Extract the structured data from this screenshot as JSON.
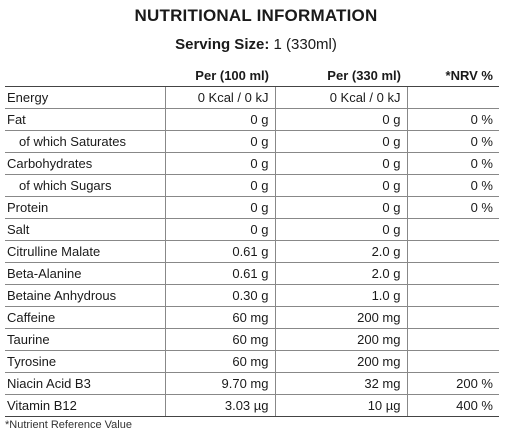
{
  "title": "NUTRITIONAL INFORMATION",
  "serving": {
    "label": "Serving Size:",
    "value": "1 (330ml)"
  },
  "table": {
    "headers": [
      "",
      "Per (100 ml)",
      "Per (330 ml)",
      "*NRV %"
    ],
    "rows": [
      {
        "name": "Energy",
        "indent": false,
        "per100": "0 Kcal / 0 kJ",
        "per330": "0 Kcal / 0 kJ",
        "nrv": ""
      },
      {
        "name": "Fat",
        "indent": false,
        "per100": "0 g",
        "per330": "0 g",
        "nrv": "0 %"
      },
      {
        "name": "of which Saturates",
        "indent": true,
        "per100": "0 g",
        "per330": "0 g",
        "nrv": "0 %"
      },
      {
        "name": "Carbohydrates",
        "indent": false,
        "per100": "0 g",
        "per330": "0 g",
        "nrv": "0 %"
      },
      {
        "name": "of which Sugars",
        "indent": true,
        "per100": "0 g",
        "per330": "0 g",
        "nrv": "0 %"
      },
      {
        "name": "Protein",
        "indent": false,
        "per100": "0 g",
        "per330": "0 g",
        "nrv": "0 %"
      },
      {
        "name": "Salt",
        "indent": false,
        "per100": "0 g",
        "per330": "0 g",
        "nrv": ""
      },
      {
        "name": "Citrulline Malate",
        "indent": false,
        "per100": "0.61 g",
        "per330": "2.0 g",
        "nrv": ""
      },
      {
        "name": "Beta-Alanine",
        "indent": false,
        "per100": "0.61 g",
        "per330": "2.0 g",
        "nrv": ""
      },
      {
        "name": "Betaine Anhydrous",
        "indent": false,
        "per100": "0.30 g",
        "per330": "1.0 g",
        "nrv": ""
      },
      {
        "name": "Caffeine",
        "indent": false,
        "per100": "60 mg",
        "per330": "200 mg",
        "nrv": ""
      },
      {
        "name": "Taurine",
        "indent": false,
        "per100": "60 mg",
        "per330": "200 mg",
        "nrv": ""
      },
      {
        "name": "Tyrosine",
        "indent": false,
        "per100": "60 mg",
        "per330": "200 mg",
        "nrv": ""
      },
      {
        "name": "Niacin Acid B3",
        "indent": false,
        "per100": "9.70 mg",
        "per330": "32 mg",
        "nrv": "200 %"
      },
      {
        "name": "Vitamin B12",
        "indent": false,
        "per100": "3.03 µg",
        "per330": "10 µg",
        "nrv": "400 %"
      }
    ]
  },
  "footnote": "*Nutrient Reference Value"
}
